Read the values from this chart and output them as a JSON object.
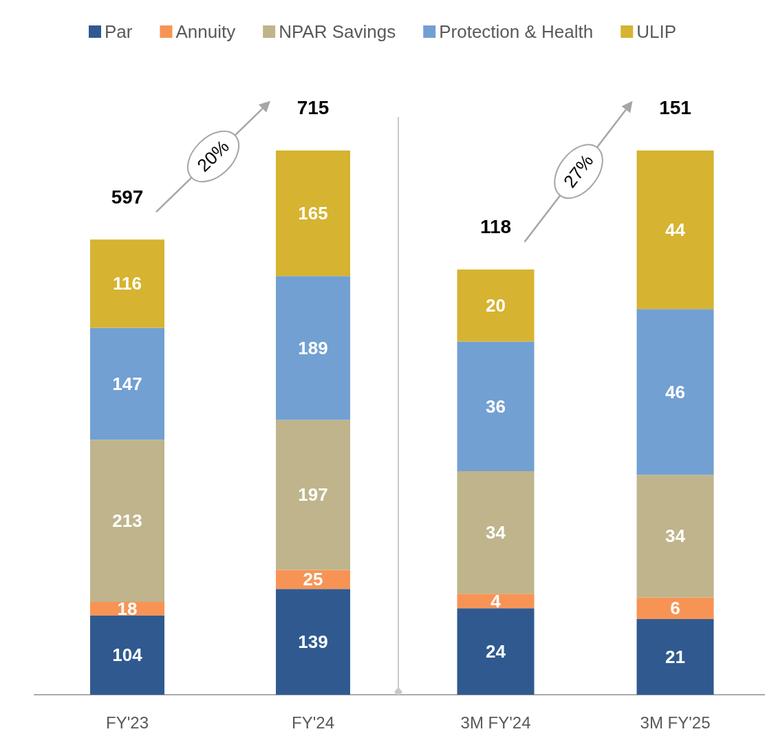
{
  "chart_data": [
    {
      "type": "bar",
      "stacked": true,
      "categories": [
        "FY'23",
        "FY'24"
      ],
      "data_labels": true,
      "legend": "top",
      "totals": [
        "597",
        "715"
      ],
      "annotations": [
        "20%"
      ],
      "series": [
        {
          "name": "Par",
          "color": "#305a8f",
          "values": [
            104,
            139
          ]
        },
        {
          "name": "Annuity",
          "color": "#f79455",
          "values": [
            18,
            25
          ]
        },
        {
          "name": "NPAR Savings",
          "color": "#bfb48b",
          "values": [
            213,
            197
          ]
        },
        {
          "name": "Protection & Health",
          "color": "#72a0d2",
          "values": [
            147,
            189
          ]
        },
        {
          "name": "ULIP",
          "color": "#d6b330",
          "values": [
            116,
            165
          ]
        }
      ]
    },
    {
      "type": "bar",
      "stacked": true,
      "categories": [
        "3M FY'24",
        "3M FY'25"
      ],
      "data_labels": true,
      "totals": [
        "118",
        "151"
      ],
      "annotations": [
        "27%"
      ],
      "series": [
        {
          "color": "#305a8f",
          "values": [
            24,
            21
          ]
        },
        {
          "color": "#f79455",
          "values": [
            4,
            6
          ]
        },
        {
          "color": "#bfb48b",
          "values": [
            34,
            34
          ]
        },
        {
          "color": "#72a0d2",
          "values": [
            36,
            46
          ]
        },
        {
          "color": "#d6b330",
          "values": [
            20,
            44
          ]
        }
      ]
    }
  ]
}
